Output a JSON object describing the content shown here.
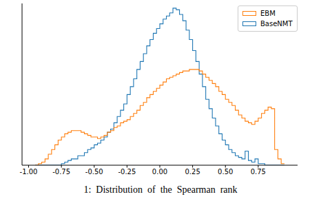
{
  "chart_data": {
    "type": "histogram",
    "annotations": [
      "1:  Distribution  of  the  Spearman  rank"
    ],
    "bins": [
      -0.95,
      -0.925,
      -0.9,
      -0.875,
      -0.85,
      -0.825,
      -0.8,
      -0.775,
      -0.75,
      -0.725,
      -0.7,
      -0.675,
      -0.65,
      -0.625,
      -0.6,
      -0.575,
      -0.55,
      -0.525,
      -0.5,
      -0.475,
      -0.45,
      -0.425,
      -0.4,
      -0.375,
      -0.35,
      -0.325,
      -0.3,
      -0.275,
      -0.25,
      -0.225,
      -0.2,
      -0.175,
      -0.15,
      -0.125,
      -0.1,
      -0.075,
      -0.05,
      -0.025,
      0,
      0.025,
      0.05,
      0.075,
      0.1,
      0.125,
      0.15,
      0.175,
      0.2,
      0.225,
      0.25,
      0.275,
      0.3,
      0.325,
      0.35,
      0.375,
      0.4,
      0.425,
      0.45,
      0.475,
      0.5,
      0.525,
      0.55,
      0.575,
      0.6,
      0.625,
      0.65,
      0.675,
      0.7,
      0.725,
      0.75,
      0.775,
      0.8,
      0.825,
      0.85,
      0.875,
      0.9,
      0.925,
      0.95
    ],
    "series": [
      {
        "name": "EBM",
        "color": "#ff7f0e",
        "values": [
          0,
          1,
          2,
          4,
          7,
          10,
          13,
          16,
          18,
          20,
          21,
          22,
          22,
          22,
          21,
          20,
          19,
          18,
          18,
          17,
          18,
          19,
          21,
          22,
          24,
          25,
          27,
          28,
          29,
          31,
          33,
          35,
          38,
          40,
          43,
          45,
          47,
          49,
          51,
          53,
          55,
          56,
          57,
          58,
          59,
          60,
          60,
          61,
          61,
          61,
          60,
          58,
          56,
          54,
          52,
          50,
          47,
          45,
          42,
          40,
          38,
          35,
          32,
          30,
          28,
          27,
          26,
          28,
          30,
          33,
          35,
          37,
          36,
          10,
          4,
          1
        ]
      },
      {
        "name": "BaseNMT",
        "color": "#1f77b4",
        "values": [
          0,
          0,
          0,
          0,
          0,
          0,
          0,
          0,
          1,
          2,
          3,
          4,
          4,
          6,
          6,
          8,
          10,
          11,
          13,
          14,
          16,
          18,
          21,
          23,
          27,
          31,
          35,
          39,
          45,
          50,
          55,
          61,
          66,
          71,
          76,
          80,
          84,
          87,
          90,
          93,
          95,
          97,
          100,
          99,
          96,
          92,
          86,
          80,
          73,
          66,
          58,
          50,
          42,
          36,
          30,
          25,
          20,
          16,
          13,
          10,
          8,
          6,
          5,
          4,
          9,
          3,
          2,
          4,
          1,
          1,
          0,
          0,
          0,
          0,
          0,
          0
        ]
      }
    ],
    "xlim": [
      -1.05,
      1.05
    ],
    "xticks": [
      {
        "value": -1,
        "label": "-1.00"
      },
      {
        "value": -0.75,
        "label": "-0.75"
      },
      {
        "value": -0.5,
        "label": "-0.50"
      },
      {
        "value": -0.25,
        "label": "-0.25"
      },
      {
        "value": 0,
        "label": "0.00"
      },
      {
        "value": 0.25,
        "label": "0.25"
      },
      {
        "value": 0.5,
        "label": "0.50"
      },
      {
        "value": 0.75,
        "label": "0.75"
      }
    ],
    "ylim": [
      0,
      103
    ],
    "tick_labels": "x",
    "legend": "upper right",
    "grid": false
  }
}
